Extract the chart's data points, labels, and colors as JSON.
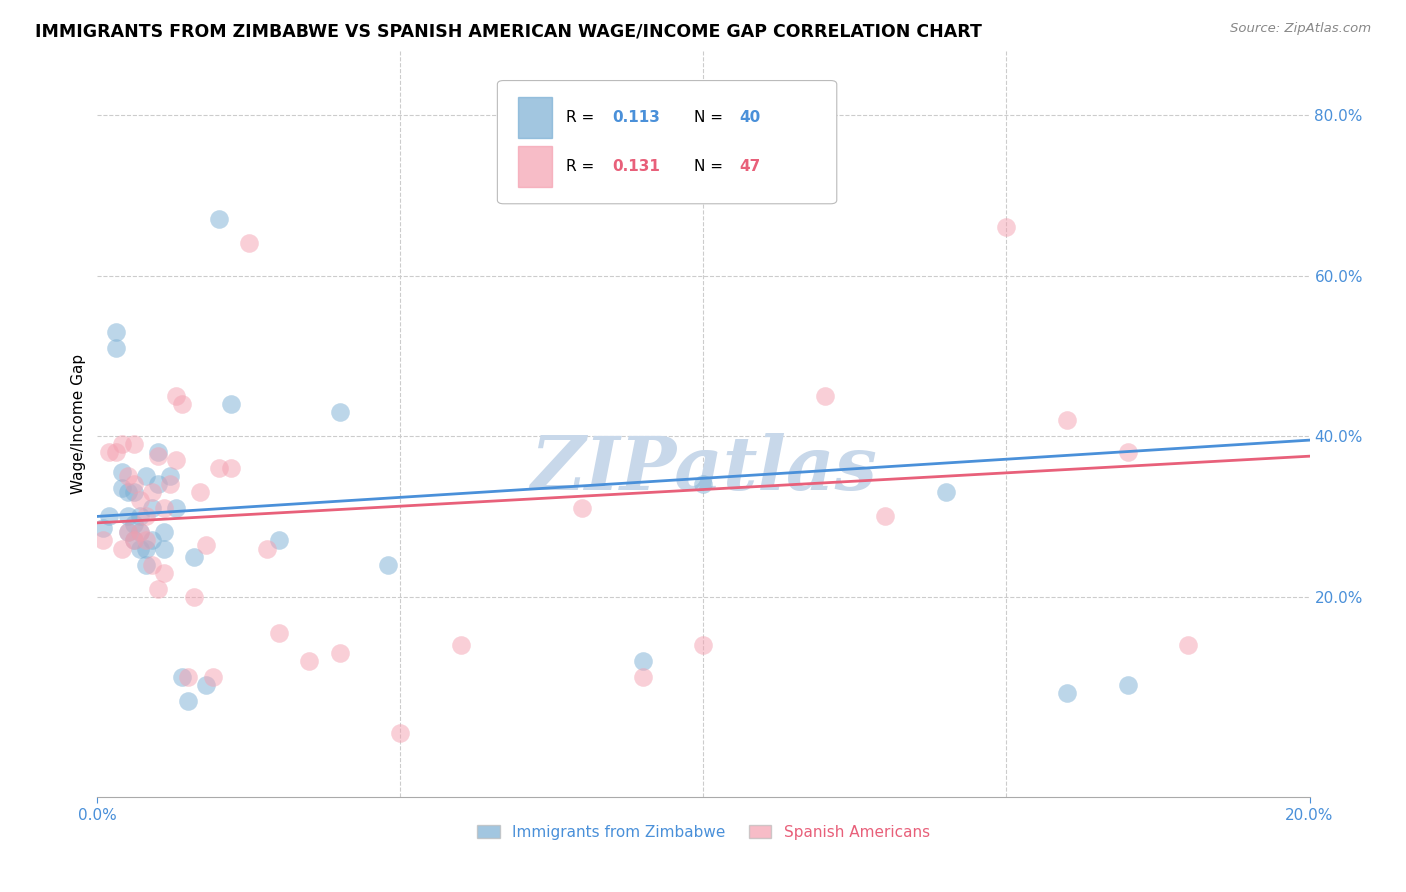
{
  "title": "IMMIGRANTS FROM ZIMBABWE VS SPANISH AMERICAN WAGE/INCOME GAP CORRELATION CHART",
  "source": "Source: ZipAtlas.com",
  "ylabel": "Wage/Income Gap",
  "ytick_labels": [
    "20.0%",
    "40.0%",
    "60.0%",
    "80.0%"
  ],
  "ytick_values": [
    0.2,
    0.4,
    0.6,
    0.8
  ],
  "xlim": [
    0.0,
    0.2
  ],
  "ylim": [
    -0.05,
    0.88
  ],
  "blue_color": "#7bafd4",
  "pink_color": "#f4a0b0",
  "blue_line_color": "#4a90d9",
  "pink_line_color": "#e8607a",
  "watermark": "ZIPatlas",
  "watermark_color": "#c8d8ea",
  "blue_x": [
    0.001,
    0.002,
    0.003,
    0.003,
    0.004,
    0.004,
    0.005,
    0.005,
    0.005,
    0.006,
    0.006,
    0.006,
    0.007,
    0.007,
    0.007,
    0.008,
    0.008,
    0.008,
    0.009,
    0.009,
    0.01,
    0.01,
    0.011,
    0.011,
    0.012,
    0.013,
    0.014,
    0.015,
    0.016,
    0.018,
    0.02,
    0.022,
    0.03,
    0.04,
    0.048,
    0.09,
    0.1,
    0.14,
    0.16,
    0.17
  ],
  "blue_y": [
    0.285,
    0.3,
    0.51,
    0.53,
    0.335,
    0.355,
    0.28,
    0.3,
    0.33,
    0.27,
    0.29,
    0.33,
    0.26,
    0.28,
    0.3,
    0.24,
    0.26,
    0.35,
    0.27,
    0.31,
    0.34,
    0.38,
    0.26,
    0.28,
    0.35,
    0.31,
    0.1,
    0.07,
    0.25,
    0.09,
    0.67,
    0.44,
    0.27,
    0.43,
    0.24,
    0.12,
    0.34,
    0.33,
    0.08,
    0.09
  ],
  "pink_x": [
    0.001,
    0.002,
    0.003,
    0.004,
    0.004,
    0.005,
    0.005,
    0.006,
    0.006,
    0.006,
    0.007,
    0.007,
    0.008,
    0.008,
    0.009,
    0.009,
    0.01,
    0.01,
    0.011,
    0.011,
    0.012,
    0.013,
    0.013,
    0.014,
    0.015,
    0.016,
    0.017,
    0.018,
    0.019,
    0.02,
    0.022,
    0.025,
    0.028,
    0.03,
    0.035,
    0.04,
    0.05,
    0.06,
    0.08,
    0.09,
    0.1,
    0.12,
    0.13,
    0.15,
    0.16,
    0.17,
    0.18
  ],
  "pink_y": [
    0.27,
    0.38,
    0.38,
    0.26,
    0.39,
    0.28,
    0.35,
    0.27,
    0.34,
    0.39,
    0.28,
    0.32,
    0.27,
    0.3,
    0.24,
    0.33,
    0.21,
    0.375,
    0.23,
    0.31,
    0.34,
    0.45,
    0.37,
    0.44,
    0.1,
    0.2,
    0.33,
    0.265,
    0.1,
    0.36,
    0.36,
    0.64,
    0.26,
    0.155,
    0.12,
    0.13,
    0.03,
    0.14,
    0.31,
    0.1,
    0.14,
    0.45,
    0.3,
    0.66,
    0.42,
    0.38,
    0.14
  ],
  "legend_R1": "0.113",
  "legend_N1": "40",
  "legend_R2": "0.131",
  "legend_N2": "47",
  "legend_label1": "Immigrants from Zimbabwe",
  "legend_label2": "Spanish Americans"
}
